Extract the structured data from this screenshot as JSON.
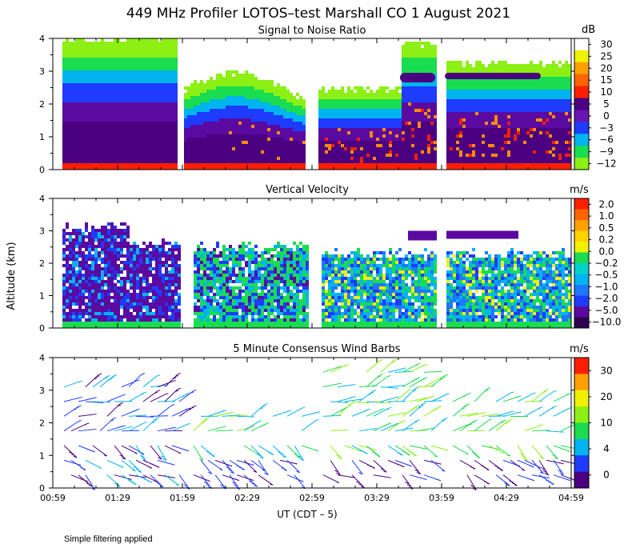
{
  "title": "449 MHz Profiler LOTOS–test Marshall CO   1 August 2021",
  "footnote": "Simple filtering applied",
  "xlabel": "UT  (CDT – 5)",
  "ylabel": "Altitude (km)",
  "colors": {
    "dark_purple": "#4a0080",
    "purple": "#5a0aa0",
    "blue": "#1e3cff",
    "med_blue": "#1e78ff",
    "cyan": "#00b4f0",
    "teal": "#00d2c8",
    "green": "#19dc50",
    "light_green": "#8cf014",
    "yellow": "#f0f000",
    "orange": "#ff8c00",
    "red": "#ff1e00",
    "white": "#ffffff"
  },
  "chart_data": [
    {
      "type": "heatmap",
      "title": "Signal to Noise Ratio",
      "xlabel": "UT  (CDT – 5)",
      "ylabel": "Altitude (km)",
      "x_ticks": [
        "00:59",
        "01:29",
        "01:59",
        "02:29",
        "02:59",
        "03:29",
        "03:59",
        "04:29",
        "04:59"
      ],
      "xlim_minutes_ut": [
        59,
        299
      ],
      "y_ticks": [
        "0",
        "1",
        "2",
        "3",
        "4"
      ],
      "ylim_km": [
        0,
        4
      ],
      "colorbar_unit": "dB",
      "colorbar_labels": [
        "30",
        "25",
        "20",
        "15",
        "10",
        "5",
        "0",
        "−3",
        "−6",
        "−9",
        "−12"
      ],
      "colorbar_colors": [
        "#ffffff",
        "#f0f000",
        "#ffa000",
        "#ff6400",
        "#ff1e00",
        "#4a0080",
        "#6a14b4",
        "#1e3cff",
        "#00b4f0",
        "#19dc50",
        "#8cf014"
      ],
      "data_gaps_ut": [
        [
          120,
          124
        ],
        [
          183,
          188
        ],
        [
          241,
          245
        ]
      ]
    },
    {
      "type": "heatmap",
      "title": "Vertical Velocity",
      "xlabel": "UT  (CDT – 5)",
      "ylabel": "Altitude (km)",
      "x_ticks": [
        "00:59",
        "01:29",
        "01:59",
        "02:29",
        "02:59",
        "03:29",
        "03:59",
        "04:29",
        "04:59"
      ],
      "xlim_minutes_ut": [
        59,
        299
      ],
      "y_ticks": [
        "0",
        "1",
        "2",
        "3",
        "4"
      ],
      "ylim_km": [
        0,
        4
      ],
      "colorbar_unit": "m/s",
      "colorbar_labels": [
        "2.0",
        "1.0",
        "0.5",
        "0.2",
        "0.0",
        "−0.2",
        "−0.5",
        "−1.0",
        "−2.0",
        "−5.0",
        "−10.0"
      ],
      "colorbar_colors": [
        "#ff1e00",
        "#ff6400",
        "#ffa000",
        "#ffd200",
        "#f0f000",
        "#19dc50",
        "#00d2c8",
        "#00b4f0",
        "#1e78ff",
        "#1e3cff",
        "#5a0aa0",
        "#300050"
      ]
    },
    {
      "type": "scatter",
      "title": "5 Minute Consensus Wind Barbs",
      "xlabel": "UT  (CDT – 5)",
      "ylabel": "Altitude (km)",
      "x_ticks": [
        "00:59",
        "01:29",
        "01:59",
        "02:29",
        "02:59",
        "03:29",
        "03:59",
        "04:29",
        "04:59"
      ],
      "xlim_minutes_ut": [
        59,
        299
      ],
      "y_ticks": [
        "0",
        "1",
        "2",
        "3",
        "4"
      ],
      "ylim_km": [
        0,
        4
      ],
      "colorbar_unit": "m/s",
      "colorbar_labels": [
        "30",
        "20",
        "10",
        "4",
        "0"
      ],
      "colorbar_colors": [
        "#ff1e00",
        "#ffa000",
        "#f0f000",
        "#8cf014",
        "#19dc50",
        "#00b4f0",
        "#1e3cff",
        "#4a0080"
      ]
    }
  ]
}
